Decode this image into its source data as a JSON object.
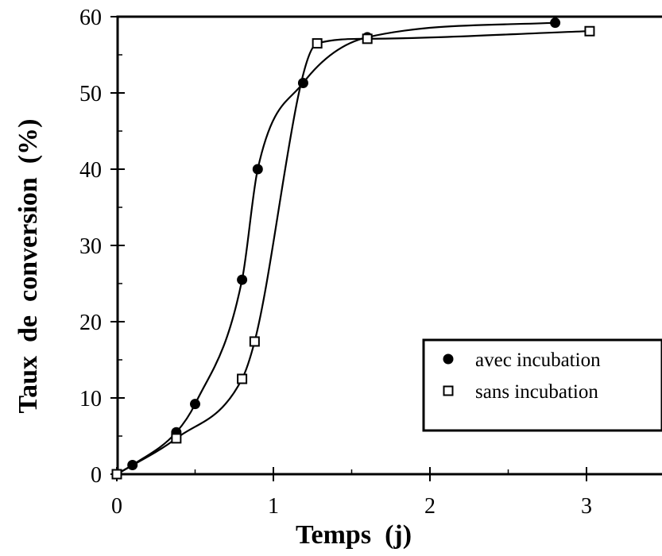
{
  "chart_data": {
    "type": "line",
    "title": "",
    "xlabel": "Temps  (j)",
    "ylabel": "Taux  de  conversion  (%)",
    "xlim": [
      0,
      3.5
    ],
    "ylim": [
      0,
      60
    ],
    "xticks": [
      0,
      1,
      2,
      3
    ],
    "xtick_labels": [
      "0",
      "1",
      "2",
      "3"
    ],
    "yticks": [
      0,
      10,
      20,
      30,
      40,
      50,
      60
    ],
    "ytick_labels": [
      "0",
      "10",
      "20",
      "30",
      "40",
      "50",
      "60"
    ],
    "grid": false,
    "legend": "bottom-right",
    "series": [
      {
        "name": "avec incubation",
        "marker": "filled-circle",
        "color": "#000000",
        "points": [
          {
            "x": 0.0,
            "y": 0.0
          },
          {
            "x": 0.1,
            "y": 1.2
          },
          {
            "x": 0.38,
            "y": 5.5
          },
          {
            "x": 0.5,
            "y": 9.2
          },
          {
            "x": 0.8,
            "y": 25.5
          },
          {
            "x": 0.9,
            "y": 40.0
          },
          {
            "x": 1.19,
            "y": 51.3
          },
          {
            "x": 1.6,
            "y": 57.3
          },
          {
            "x": 2.8,
            "y": 59.2
          }
        ]
      },
      {
        "name": "sans incubation",
        "marker": "open-square",
        "color": "#000000",
        "points": [
          {
            "x": 0.0,
            "y": 0.0
          },
          {
            "x": 0.38,
            "y": 4.7
          },
          {
            "x": 0.8,
            "y": 12.5
          },
          {
            "x": 0.88,
            "y": 17.4
          },
          {
            "x": 1.28,
            "y": 56.5
          },
          {
            "x": 1.6,
            "y": 57.1
          },
          {
            "x": 3.02,
            "y": 58.1
          }
        ]
      }
    ]
  }
}
